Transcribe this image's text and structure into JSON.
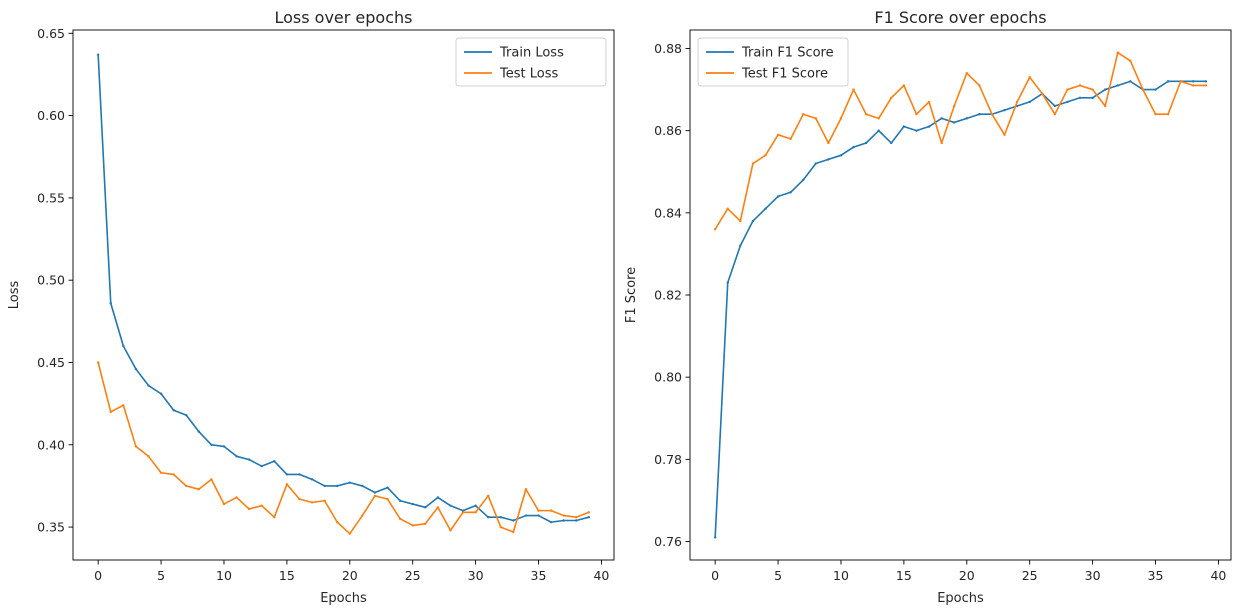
{
  "chart_data": [
    {
      "type": "line",
      "title": "Loss over epochs",
      "xlabel": "Epochs",
      "ylabel": "Loss",
      "xlim": [
        -2,
        41
      ],
      "ylim": [
        0.33,
        0.652
      ],
      "xticks": [
        0,
        5,
        10,
        15,
        20,
        25,
        30,
        35,
        40
      ],
      "yticks": [
        0.35,
        0.4,
        0.45,
        0.5,
        0.55,
        0.6,
        0.65
      ],
      "ytick_decimals": 2,
      "grid": false,
      "legend_position": "top-right",
      "x": [
        0,
        1,
        2,
        3,
        4,
        5,
        6,
        7,
        8,
        9,
        10,
        11,
        12,
        13,
        14,
        15,
        16,
        17,
        18,
        19,
        20,
        21,
        22,
        23,
        24,
        25,
        26,
        27,
        28,
        29,
        30,
        31,
        32,
        33,
        34,
        35,
        36,
        37,
        38,
        39
      ],
      "series": [
        {
          "name": "Train Loss",
          "color": "#1f77b4",
          "values": [
            0.637,
            0.486,
            0.46,
            0.446,
            0.436,
            0.431,
            0.421,
            0.418,
            0.408,
            0.4,
            0.399,
            0.393,
            0.391,
            0.387,
            0.39,
            0.382,
            0.382,
            0.379,
            0.375,
            0.375,
            0.377,
            0.375,
            0.371,
            0.374,
            0.366,
            0.364,
            0.362,
            0.368,
            0.363,
            0.36,
            0.363,
            0.356,
            0.356,
            0.354,
            0.357,
            0.357,
            0.353,
            0.354,
            0.354,
            0.356
          ]
        },
        {
          "name": "Test Loss",
          "color": "#ff7f0e",
          "values": [
            0.45,
            0.42,
            0.424,
            0.399,
            0.393,
            0.383,
            0.382,
            0.375,
            0.373,
            0.379,
            0.364,
            0.368,
            0.361,
            0.363,
            0.356,
            0.376,
            0.367,
            0.365,
            0.366,
            0.353,
            0.346,
            0.357,
            0.369,
            0.367,
            0.355,
            0.351,
            0.352,
            0.362,
            0.348,
            0.359,
            0.359,
            0.369,
            0.35,
            0.347,
            0.373,
            0.36,
            0.36,
            0.357,
            0.356,
            0.359
          ]
        }
      ]
    },
    {
      "type": "line",
      "title": "F1 Score over epochs",
      "xlabel": "Epochs",
      "ylabel": "F1 Score",
      "xlim": [
        -2,
        41
      ],
      "ylim": [
        0.7555,
        0.8845
      ],
      "xticks": [
        0,
        5,
        10,
        15,
        20,
        25,
        30,
        35,
        40
      ],
      "yticks": [
        0.76,
        0.78,
        0.8,
        0.82,
        0.84,
        0.86,
        0.88
      ],
      "ytick_decimals": 2,
      "grid": false,
      "legend_position": "top-left",
      "x": [
        0,
        1,
        2,
        3,
        4,
        5,
        6,
        7,
        8,
        9,
        10,
        11,
        12,
        13,
        14,
        15,
        16,
        17,
        18,
        19,
        20,
        21,
        22,
        23,
        24,
        25,
        26,
        27,
        28,
        29,
        30,
        31,
        32,
        33,
        34,
        35,
        36,
        37,
        38,
        39
      ],
      "series": [
        {
          "name": "Train F1 Score",
          "color": "#1f77b4",
          "values": [
            0.761,
            0.823,
            0.832,
            0.838,
            0.841,
            0.844,
            0.845,
            0.848,
            0.852,
            0.853,
            0.854,
            0.856,
            0.857,
            0.86,
            0.857,
            0.861,
            0.86,
            0.861,
            0.863,
            0.862,
            0.863,
            0.864,
            0.864,
            0.865,
            0.866,
            0.867,
            0.869,
            0.866,
            0.867,
            0.868,
            0.868,
            0.87,
            0.871,
            0.872,
            0.87,
            0.87,
            0.872,
            0.872,
            0.872,
            0.872
          ]
        },
        {
          "name": "Test F1 Score",
          "color": "#ff7f0e",
          "values": [
            0.836,
            0.841,
            0.838,
            0.852,
            0.854,
            0.859,
            0.858,
            0.864,
            0.863,
            0.857,
            0.863,
            0.87,
            0.864,
            0.863,
            0.868,
            0.871,
            0.864,
            0.867,
            0.857,
            0.866,
            0.874,
            0.871,
            0.864,
            0.859,
            0.867,
            0.873,
            0.869,
            0.864,
            0.87,
            0.871,
            0.87,
            0.866,
            0.879,
            0.877,
            0.87,
            0.864,
            0.864,
            0.872,
            0.871,
            0.871
          ]
        }
      ]
    }
  ]
}
